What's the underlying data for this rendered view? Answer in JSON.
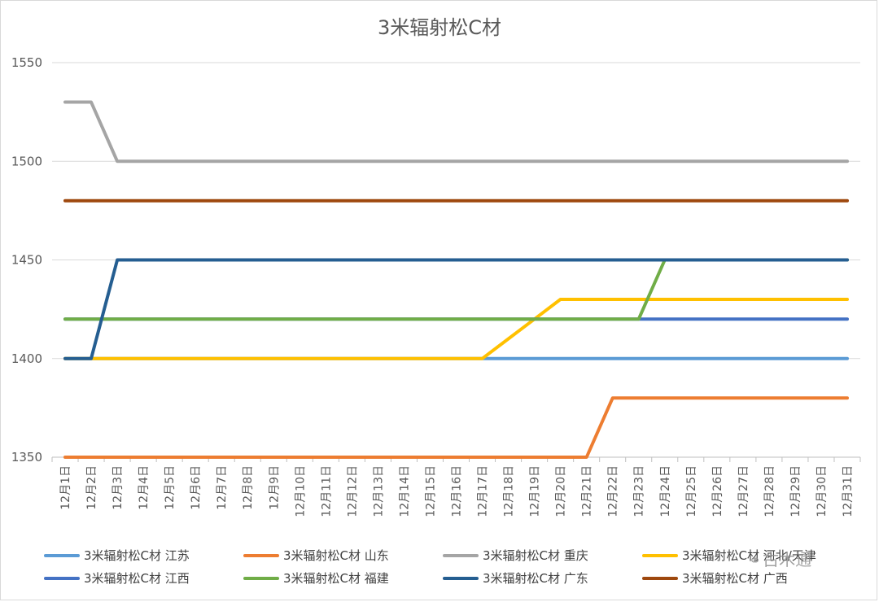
{
  "chart_data": {
    "type": "line",
    "title": "3米辐射松C材",
    "categories": [
      "12月1日",
      "12月2日",
      "12月3日",
      "12月4日",
      "12月5日",
      "12月6日",
      "12月7日",
      "12月8日",
      "12月9日",
      "12月10日",
      "12月11日",
      "12月12日",
      "12月13日",
      "12月14日",
      "12月15日",
      "12月16日",
      "12月17日",
      "12月18日",
      "12月19日",
      "12月20日",
      "12月21日",
      "12月22日",
      "12月23日",
      "12月24日",
      "12月25日",
      "12月26日",
      "12月27日",
      "12月28日",
      "12月29日",
      "12月30日",
      "12月31日"
    ],
    "ylim": [
      1350,
      1550
    ],
    "yticks": [
      1350,
      1400,
      1450,
      1500,
      1550
    ],
    "grid": true,
    "legend_position": "bottom",
    "series": [
      {
        "name": "3米辐射松C材 江苏",
        "color": "#5b9bd5",
        "values": [
          1400,
          1400,
          1400,
          1400,
          1400,
          1400,
          1400,
          1400,
          1400,
          1400,
          1400,
          1400,
          1400,
          1400,
          1400,
          1400,
          1400,
          1400,
          1400,
          1400,
          1400,
          1400,
          1400,
          1400,
          1400,
          1400,
          1400,
          1400,
          1400,
          1400,
          1400
        ]
      },
      {
        "name": "3米辐射松C材 山东",
        "color": "#ed7d31",
        "values": [
          1350,
          1350,
          1350,
          1350,
          1350,
          1350,
          1350,
          1350,
          1350,
          1350,
          1350,
          1350,
          1350,
          1350,
          1350,
          1350,
          1350,
          1350,
          1350,
          1350,
          1350,
          1380,
          1380,
          1380,
          1380,
          1380,
          1380,
          1380,
          1380,
          1380,
          1380
        ]
      },
      {
        "name": "3米辐射松C材 重庆",
        "color": "#a5a5a5",
        "values": [
          1530,
          1530,
          1500,
          1500,
          1500,
          1500,
          1500,
          1500,
          1500,
          1500,
          1500,
          1500,
          1500,
          1500,
          1500,
          1500,
          1500,
          1500,
          1500,
          1500,
          1500,
          1500,
          1500,
          1500,
          1500,
          1500,
          1500,
          1500,
          1500,
          1500,
          1500
        ]
      },
      {
        "name": "3米辐射松C材 河北/天津",
        "color": "#ffc000",
        "values": [
          1400,
          1400,
          1400,
          1400,
          1400,
          1400,
          1400,
          1400,
          1400,
          1400,
          1400,
          1400,
          1400,
          1400,
          1400,
          1400,
          1400,
          1410,
          1420,
          1430,
          1430,
          1430,
          1430,
          1430,
          1430,
          1430,
          1430,
          1430,
          1430,
          1430,
          1430
        ]
      },
      {
        "name": "3米辐射松C材 江西",
        "color": "#4472c4",
        "values": [
          1420,
          1420,
          1420,
          1420,
          1420,
          1420,
          1420,
          1420,
          1420,
          1420,
          1420,
          1420,
          1420,
          1420,
          1420,
          1420,
          1420,
          1420,
          1420,
          1420,
          1420,
          1420,
          1420,
          1420,
          1420,
          1420,
          1420,
          1420,
          1420,
          1420,
          1420
        ]
      },
      {
        "name": "3米辐射松C材 福建",
        "color": "#70ad47",
        "values": [
          1420,
          1420,
          1420,
          1420,
          1420,
          1420,
          1420,
          1420,
          1420,
          1420,
          1420,
          1420,
          1420,
          1420,
          1420,
          1420,
          1420,
          1420,
          1420,
          1420,
          1420,
          1420,
          1420,
          1450,
          1450,
          1450,
          1450,
          1450,
          1450,
          1450,
          1450
        ]
      },
      {
        "name": "3米辐射松C材 广东",
        "color": "#255e91",
        "values": [
          1400,
          1400,
          1450,
          1450,
          1450,
          1450,
          1450,
          1450,
          1450,
          1450,
          1450,
          1450,
          1450,
          1450,
          1450,
          1450,
          1450,
          1450,
          1450,
          1450,
          1450,
          1450,
          1450,
          1450,
          1450,
          1450,
          1450,
          1450,
          1450,
          1450,
          1450
        ]
      },
      {
        "name": "3米辐射松C材 广西",
        "color": "#9e480e",
        "values": [
          1480,
          1480,
          1480,
          1480,
          1480,
          1480,
          1480,
          1480,
          1480,
          1480,
          1480,
          1480,
          1480,
          1480,
          1480,
          1480,
          1480,
          1480,
          1480,
          1480,
          1480,
          1480,
          1480,
          1480,
          1480,
          1480,
          1480,
          1480,
          1480,
          1480,
          1480
        ]
      }
    ]
  },
  "watermark": {
    "icon": "wechat-icon",
    "text": "古木通"
  }
}
